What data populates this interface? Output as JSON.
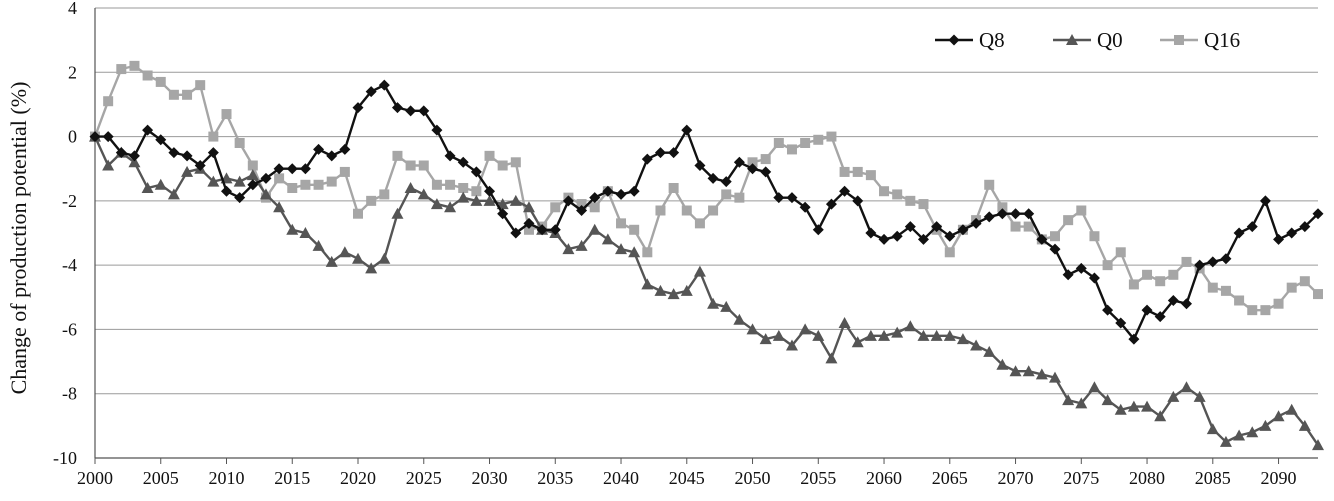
{
  "chart_data": {
    "type": "line",
    "title": "",
    "xlabel": "",
    "ylabel": "Change of production potential (%)",
    "xlim": [
      2000,
      2093
    ],
    "ylim": [
      -10,
      4
    ],
    "x_ticks": [
      2000,
      2005,
      2010,
      2015,
      2020,
      2025,
      2030,
      2035,
      2040,
      2045,
      2050,
      2055,
      2060,
      2065,
      2070,
      2075,
      2080,
      2085,
      2090
    ],
    "y_ticks": [
      -10,
      -8,
      -6,
      -4,
      -2,
      0,
      2,
      4
    ],
    "grid": "horizontal",
    "legend_position": "top-right",
    "x_start": 2000,
    "series": [
      {
        "name": "Q8",
        "color": "#111111",
        "marker": "diamond",
        "values": [
          0,
          0.0,
          -0.5,
          -0.6,
          0.2,
          -0.1,
          -0.5,
          -0.6,
          -0.9,
          -0.5,
          -1.7,
          -1.9,
          -1.5,
          -1.3,
          -1.0,
          -1.0,
          -1.0,
          -0.4,
          -0.6,
          -0.4,
          0.9,
          1.4,
          1.6,
          0.9,
          0.8,
          0.8,
          0.2,
          -0.6,
          -0.8,
          -1.1,
          -1.7,
          -2.4,
          -3.0,
          -2.7,
          -2.9,
          -2.9,
          -2.0,
          -2.3,
          -1.9,
          -1.7,
          -1.8,
          -1.7,
          -0.7,
          -0.5,
          -0.5,
          0.2,
          -0.9,
          -1.3,
          -1.4,
          -0.8,
          -1.0,
          -1.1,
          -1.9,
          -1.9,
          -2.2,
          -2.9,
          -2.1,
          -1.7,
          -2.0,
          -3.0,
          -3.2,
          -3.1,
          -2.8,
          -3.2,
          -2.8,
          -3.1,
          -2.9,
          -2.7,
          -2.5,
          -2.4,
          -2.4,
          -2.4,
          -3.2,
          -3.5,
          -4.3,
          -4.1,
          -4.4,
          -5.4,
          -5.8,
          -6.3,
          -5.4,
          -5.6,
          -5.1,
          -5.2,
          -4.0,
          -3.9,
          -3.8,
          -3.0,
          -2.8,
          -2.0,
          -3.2,
          -3.0,
          -2.8,
          -2.4
        ]
      },
      {
        "name": "Q0",
        "color": "#555555",
        "marker": "triangle",
        "values": [
          0,
          -0.9,
          -0.5,
          -0.8,
          -1.6,
          -1.5,
          -1.8,
          -1.1,
          -1.0,
          -1.4,
          -1.3,
          -1.4,
          -1.2,
          -1.8,
          -2.2,
          -2.9,
          -3.0,
          -3.4,
          -3.9,
          -3.6,
          -3.8,
          -4.1,
          -3.8,
          -2.4,
          -1.6,
          -1.8,
          -2.1,
          -2.2,
          -1.9,
          -2.0,
          -2.0,
          -2.1,
          -2.0,
          -2.2,
          -2.9,
          -3.0,
          -3.5,
          -3.4,
          -2.9,
          -3.2,
          -3.5,
          -3.6,
          -4.6,
          -4.8,
          -4.9,
          -4.8,
          -4.2,
          -5.2,
          -5.3,
          -5.7,
          -6.0,
          -6.3,
          -6.2,
          -6.5,
          -6.0,
          -6.2,
          -6.9,
          -5.8,
          -6.4,
          -6.2,
          -6.2,
          -6.1,
          -5.9,
          -6.2,
          -6.2,
          -6.2,
          -6.3,
          -6.5,
          -6.7,
          -7.1,
          -7.3,
          -7.3,
          -7.4,
          -7.5,
          -8.2,
          -8.3,
          -7.8,
          -8.2,
          -8.5,
          -8.4,
          -8.4,
          -8.7,
          -8.1,
          -7.8,
          -8.1,
          -9.1,
          -9.5,
          -9.3,
          -9.2,
          -9.0,
          -8.7,
          -8.5,
          -9.0,
          -9.6
        ]
      },
      {
        "name": "Q16",
        "color": "#a6a6a6",
        "marker": "square",
        "values": [
          0,
          1.1,
          2.1,
          2.2,
          1.9,
          1.7,
          1.3,
          1.3,
          1.6,
          0.0,
          0.7,
          -0.2,
          -0.9,
          -1.9,
          -1.3,
          -1.6,
          -1.5,
          -1.5,
          -1.4,
          -1.1,
          -2.4,
          -2.0,
          -1.8,
          -0.6,
          -0.9,
          -0.9,
          -1.5,
          -1.5,
          -1.6,
          -1.7,
          -0.6,
          -0.9,
          -0.8,
          -2.9,
          -2.8,
          -2.2,
          -1.9,
          -2.1,
          -2.2,
          -1.7,
          -2.7,
          -2.9,
          -3.6,
          -2.3,
          -1.6,
          -2.3,
          -2.7,
          -2.3,
          -1.8,
          -1.9,
          -0.8,
          -0.7,
          -0.2,
          -0.4,
          -0.2,
          -0.1,
          0.0,
          -1.1,
          -1.1,
          -1.2,
          -1.7,
          -1.8,
          -2.0,
          -2.1,
          -2.9,
          -3.6,
          -2.9,
          -2.6,
          -1.5,
          -2.2,
          -2.8,
          -2.8,
          -3.2,
          -3.1,
          -2.6,
          -2.3,
          -3.1,
          -4.0,
          -3.6,
          -4.6,
          -4.3,
          -4.5,
          -4.3,
          -3.9,
          -4.1,
          -4.7,
          -4.8,
          -5.1,
          -5.4,
          -5.4,
          -5.2,
          -4.7,
          -4.5,
          -4.9
        ]
      }
    ]
  }
}
